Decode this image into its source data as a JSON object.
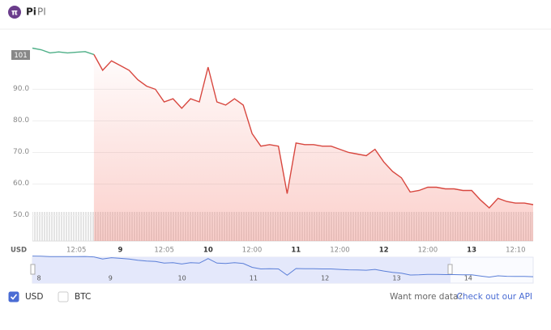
{
  "header": {
    "symbol": "Pi",
    "ticker": "PI"
  },
  "chart_data": {
    "type": "line",
    "categories": [
      null,
      null,
      null,
      null,
      null,
      "12:05",
      null,
      null,
      null,
      null,
      "9",
      null,
      null,
      null,
      null,
      "12:05",
      null,
      null,
      null,
      null,
      "10",
      null,
      null,
      null,
      null,
      "12:00",
      null,
      null,
      null,
      null,
      "11",
      null,
      null,
      null,
      null,
      "12:00",
      null,
      null,
      null,
      null,
      "12",
      null,
      null,
      null,
      null,
      "12:00",
      null,
      null,
      null,
      null,
      "13",
      null,
      null,
      null,
      null,
      "12:10",
      null,
      null
    ],
    "series": [
      {
        "color": "#4eaf87",
        "values": [
          103,
          102.5,
          101.5,
          101.8,
          101.5,
          101.7,
          101.9,
          101,
          null,
          null,
          null,
          null,
          null,
          null,
          null,
          null,
          null,
          null,
          null,
          null,
          null,
          null,
          null,
          null,
          null,
          null,
          null,
          null,
          null,
          null,
          null,
          null,
          null,
          null,
          null,
          null,
          null,
          null,
          null,
          null,
          null,
          null,
          null,
          null,
          null,
          null,
          null,
          null,
          null,
          null,
          null,
          null,
          null,
          null,
          null,
          null,
          null,
          null
        ]
      },
      {
        "color": "#d8473f",
        "values": [
          null,
          null,
          null,
          null,
          null,
          null,
          null,
          101,
          96,
          99,
          97.5,
          96,
          93,
          91,
          90,
          86,
          87,
          84,
          87,
          86,
          97,
          86,
          85,
          87,
          85,
          76,
          72,
          72.5,
          72,
          57,
          73,
          72.5,
          72.5,
          72,
          72,
          71,
          70,
          69.5,
          69,
          71,
          67,
          64,
          62,
          57.5,
          58,
          59,
          59,
          58.5,
          58.5,
          58,
          58,
          55,
          52.5,
          55.5,
          54.5,
          54,
          54,
          53.5
        ]
      }
    ],
    "ylim": [
      42,
      108
    ],
    "yticks": [
      {
        "value": 50,
        "label": "50.0"
      },
      {
        "value": 60,
        "label": "60.0"
      },
      {
        "value": 70,
        "label": "70.0"
      },
      {
        "value": 80,
        "label": "80.0"
      },
      {
        "value": 90,
        "label": "90.0"
      }
    ],
    "y_label": "USD",
    "grid": true,
    "area": true,
    "price_badge": 101
  },
  "navigator": {
    "labels": [
      "8",
      "9",
      "10",
      "11",
      "12",
      "13",
      "14"
    ]
  },
  "currency_options": [
    {
      "label": "USD",
      "checked": true
    },
    {
      "label": "BTC",
      "checked": false
    }
  ],
  "api_prompt": {
    "text": "Want more data?",
    "link": "Check out our API"
  }
}
